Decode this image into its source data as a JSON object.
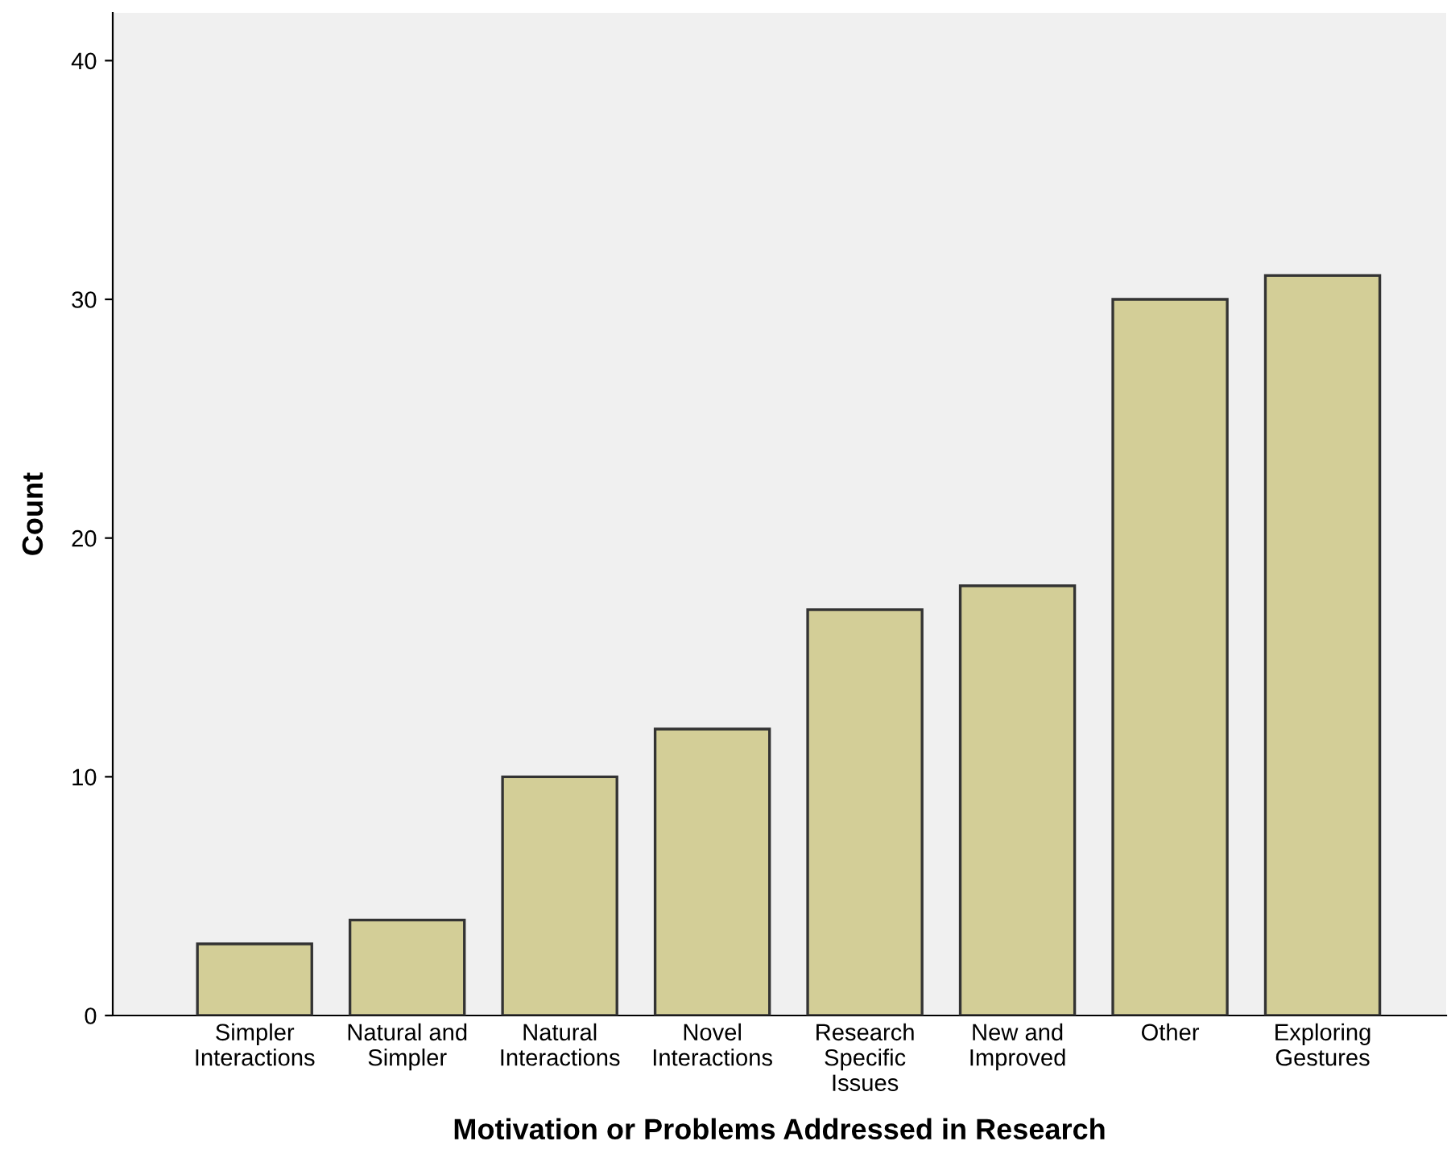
{
  "chart_data": {
    "type": "bar",
    "xlabel": "Motivation or Problems Addressed in Research",
    "ylabel": "Count",
    "categories": [
      "Simpler\nInteractions",
      "Natural and\nSimpler",
      "Natural\nInteractions",
      "Novel\nInteractions",
      "Research\nSpecific\nIssues",
      "New and\nImproved",
      "Other",
      "Exploring\nGestures"
    ],
    "values": [
      3,
      4,
      10,
      12,
      17,
      18,
      30,
      31
    ],
    "color": "#d3ce97",
    "ylim": [
      0,
      42
    ],
    "yticks": [
      0,
      10,
      20,
      30,
      40
    ],
    "grid": false,
    "legend": false
  }
}
